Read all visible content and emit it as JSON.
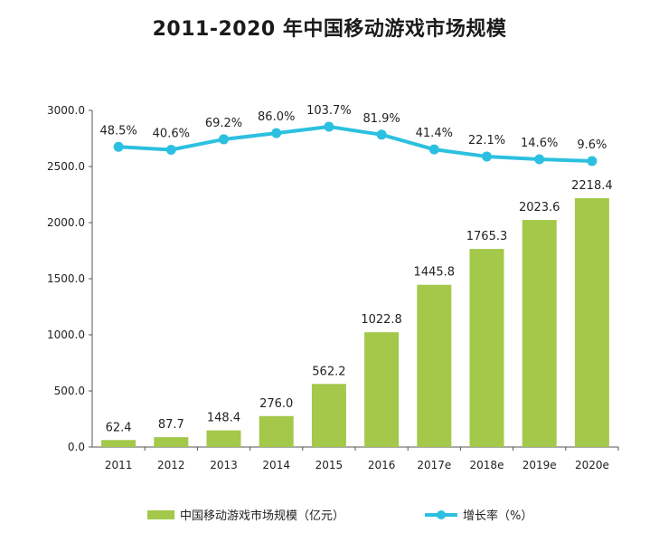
{
  "title": "2011-2020 年中国移动游戏市场规模",
  "chart_data": {
    "type": "bar",
    "categories": [
      "2011",
      "2012",
      "2013",
      "2014",
      "2015",
      "2016",
      "2017e",
      "2018e",
      "2019e",
      "2020e"
    ],
    "series": [
      {
        "name": "中国移动游戏市场规模（亿元）",
        "type": "bar",
        "values": [
          62.4,
          87.7,
          148.4,
          276.0,
          562.2,
          1022.8,
          1445.8,
          1765.3,
          2023.6,
          2218.4
        ],
        "labels": [
          "62.4",
          "87.7",
          "148.4",
          "276.0",
          "562.2",
          "1022.8",
          "1445.8",
          "1765.3",
          "2023.6",
          "2218.4"
        ],
        "color": "#a3c84a"
      },
      {
        "name": "增长率（%）",
        "type": "line",
        "values": [
          48.5,
          40.6,
          69.2,
          86.0,
          103.7,
          81.9,
          41.4,
          22.1,
          14.6,
          9.6
        ],
        "labels": [
          "48.5%",
          "40.6%",
          "69.2%",
          "86.0%",
          "103.7%",
          "81.9%",
          "41.4%",
          "22.1%",
          "14.6%",
          "9.6%"
        ],
        "color": "#2cc0e0"
      }
    ],
    "y_ticks": [
      "0.0",
      "500.0",
      "1000.0",
      "1500.0",
      "2000.0",
      "2500.0",
      "3000.0"
    ],
    "ylim": [
      0,
      3000
    ],
    "legend_position": "bottom",
    "grid": false
  }
}
